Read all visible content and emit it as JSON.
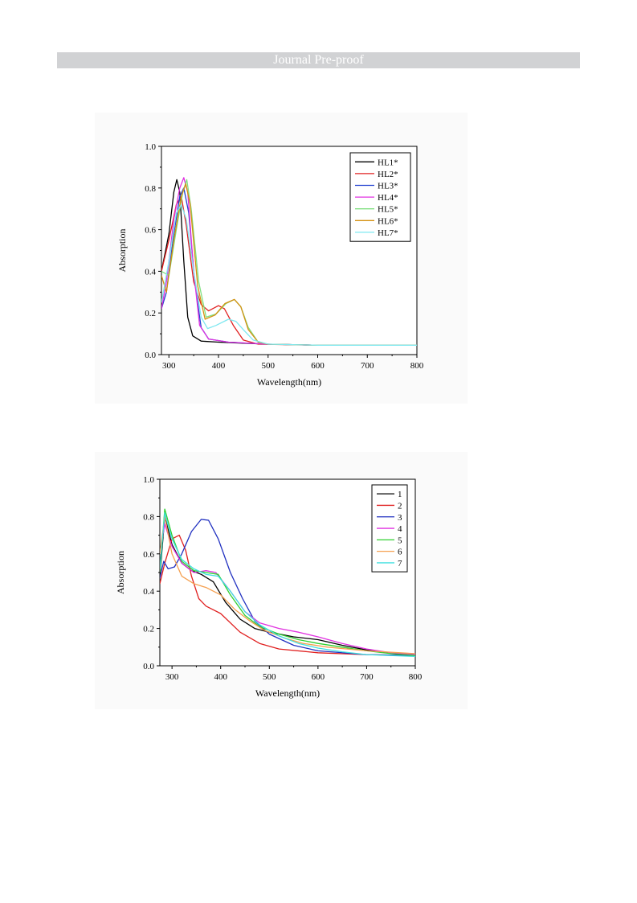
{
  "header": {
    "banner": "Journal Pre-proof"
  },
  "chart_data": [
    {
      "type": "line",
      "xlabel": "Wavelength(nm)",
      "ylabel": "Absorption",
      "xlim": [
        285,
        800
      ],
      "ylim": [
        0,
        1.0
      ],
      "xticks": [
        "300",
        "400",
        "500",
        "600",
        "700",
        "800"
      ],
      "yticks": [
        "0.0",
        "0.2",
        "0.4",
        "0.6",
        "0.8",
        "1.0"
      ],
      "legend_position": "top-right",
      "series": [
        {
          "name": "HL1*",
          "color": "#000000",
          "points": [
            [
              285,
              0.4
            ],
            [
              300,
              0.58
            ],
            [
              310,
              0.78
            ],
            [
              316,
              0.84
            ],
            [
              322,
              0.78
            ],
            [
              330,
              0.45
            ],
            [
              338,
              0.18
            ],
            [
              348,
              0.09
            ],
            [
              365,
              0.065
            ],
            [
              400,
              0.06
            ],
            [
              450,
              0.055
            ],
            [
              500,
              0.05
            ],
            [
              600,
              0.045
            ],
            [
              800,
              0.045
            ]
          ]
        },
        {
          "name": "HL2*",
          "color": "#e02020",
          "points": [
            [
              285,
              0.4
            ],
            [
              300,
              0.55
            ],
            [
              315,
              0.72
            ],
            [
              325,
              0.76
            ],
            [
              335,
              0.62
            ],
            [
              350,
              0.35
            ],
            [
              365,
              0.24
            ],
            [
              380,
              0.21
            ],
            [
              400,
              0.235
            ],
            [
              412,
              0.22
            ],
            [
              430,
              0.14
            ],
            [
              450,
              0.07
            ],
            [
              480,
              0.05
            ],
            [
              600,
              0.045
            ],
            [
              800,
              0.045
            ]
          ]
        },
        {
          "name": "HL3*",
          "color": "#2040d0",
          "points": [
            [
              285,
              0.22
            ],
            [
              295,
              0.3
            ],
            [
              310,
              0.58
            ],
            [
              322,
              0.76
            ],
            [
              330,
              0.8
            ],
            [
              340,
              0.68
            ],
            [
              352,
              0.35
            ],
            [
              365,
              0.13
            ],
            [
              380,
              0.075
            ],
            [
              420,
              0.06
            ],
            [
              500,
              0.05
            ],
            [
              600,
              0.045
            ],
            [
              800,
              0.045
            ]
          ]
        },
        {
          "name": "HL4*",
          "color": "#e030e0",
          "points": [
            [
              285,
              0.22
            ],
            [
              295,
              0.35
            ],
            [
              310,
              0.65
            ],
            [
              322,
              0.8
            ],
            [
              330,
              0.85
            ],
            [
              338,
              0.78
            ],
            [
              350,
              0.4
            ],
            [
              362,
              0.14
            ],
            [
              380,
              0.075
            ],
            [
              420,
              0.06
            ],
            [
              500,
              0.05
            ],
            [
              600,
              0.045
            ],
            [
              800,
              0.045
            ]
          ]
        },
        {
          "name": "HL5*",
          "color": "#80e080",
          "points": [
            [
              285,
              0.4
            ],
            [
              300,
              0.38
            ],
            [
              315,
              0.6
            ],
            [
              328,
              0.78
            ],
            [
              336,
              0.84
            ],
            [
              345,
              0.7
            ],
            [
              360,
              0.35
            ],
            [
              375,
              0.18
            ],
            [
              395,
              0.195
            ],
            [
              415,
              0.245
            ],
            [
              432,
              0.265
            ],
            [
              445,
              0.23
            ],
            [
              460,
              0.13
            ],
            [
              480,
              0.06
            ],
            [
              500,
              0.05
            ],
            [
              600,
              0.045
            ],
            [
              800,
              0.045
            ]
          ]
        },
        {
          "name": "HL6*",
          "color": "#d49010",
          "points": [
            [
              285,
              0.38
            ],
            [
              295,
              0.3
            ],
            [
              310,
              0.55
            ],
            [
              325,
              0.76
            ],
            [
              334,
              0.82
            ],
            [
              343,
              0.72
            ],
            [
              358,
              0.33
            ],
            [
              373,
              0.17
            ],
            [
              393,
              0.19
            ],
            [
              413,
              0.245
            ],
            [
              432,
              0.265
            ],
            [
              445,
              0.23
            ],
            [
              460,
              0.12
            ],
            [
              480,
              0.06
            ],
            [
              500,
              0.05
            ],
            [
              600,
              0.045
            ],
            [
              800,
              0.045
            ]
          ]
        },
        {
          "name": "HL7*",
          "color": "#7ee8f0",
          "points": [
            [
              285,
              0.25
            ],
            [
              300,
              0.45
            ],
            [
              315,
              0.68
            ],
            [
              325,
              0.72
            ],
            [
              335,
              0.65
            ],
            [
              350,
              0.4
            ],
            [
              365,
              0.18
            ],
            [
              378,
              0.125
            ],
            [
              395,
              0.14
            ],
            [
              420,
              0.17
            ],
            [
              435,
              0.16
            ],
            [
              450,
              0.12
            ],
            [
              470,
              0.07
            ],
            [
              500,
              0.05
            ],
            [
              600,
              0.045
            ],
            [
              800,
              0.045
            ]
          ]
        }
      ]
    },
    {
      "type": "line",
      "xlabel": "Wavelength(nm)",
      "ylabel": "Absorption",
      "xlim": [
        275,
        800
      ],
      "ylim": [
        0,
        1.0
      ],
      "xticks": [
        "300",
        "400",
        "500",
        "600",
        "700",
        "800"
      ],
      "yticks": [
        "0.0",
        "0.2",
        "0.4",
        "0.6",
        "0.8",
        "1.0"
      ],
      "legend_position": "top-right",
      "series": [
        {
          "name": "1",
          "color": "#000000",
          "points": [
            [
              275,
              0.48
            ],
            [
              285,
              0.8
            ],
            [
              300,
              0.65
            ],
            [
              320,
              0.55
            ],
            [
              340,
              0.51
            ],
            [
              360,
              0.49
            ],
            [
              385,
              0.45
            ],
            [
              410,
              0.34
            ],
            [
              440,
              0.25
            ],
            [
              470,
              0.2
            ],
            [
              500,
              0.18
            ],
            [
              550,
              0.155
            ],
            [
              600,
              0.14
            ],
            [
              650,
              0.11
            ],
            [
              700,
              0.085
            ],
            [
              750,
              0.07
            ],
            [
              800,
              0.06
            ]
          ]
        },
        {
          "name": "2",
          "color": "#e02020",
          "points": [
            [
              275,
              0.44
            ],
            [
              285,
              0.55
            ],
            [
              300,
              0.68
            ],
            [
              315,
              0.7
            ],
            [
              328,
              0.62
            ],
            [
              340,
              0.48
            ],
            [
              355,
              0.36
            ],
            [
              370,
              0.32
            ],
            [
              400,
              0.28
            ],
            [
              440,
              0.18
            ],
            [
              480,
              0.12
            ],
            [
              520,
              0.09
            ],
            [
              600,
              0.07
            ],
            [
              700,
              0.06
            ],
            [
              800,
              0.055
            ]
          ]
        },
        {
          "name": "3",
          "color": "#2030c0",
          "points": [
            [
              275,
              0.47
            ],
            [
              283,
              0.56
            ],
            [
              292,
              0.52
            ],
            [
              305,
              0.53
            ],
            [
              320,
              0.6
            ],
            [
              340,
              0.72
            ],
            [
              360,
              0.785
            ],
            [
              375,
              0.78
            ],
            [
              395,
              0.68
            ],
            [
              420,
              0.5
            ],
            [
              445,
              0.36
            ],
            [
              470,
              0.24
            ],
            [
              500,
              0.17
            ],
            [
              550,
              0.11
            ],
            [
              600,
              0.08
            ],
            [
              700,
              0.06
            ],
            [
              800,
              0.055
            ]
          ]
        },
        {
          "name": "4",
          "color": "#e030e0",
          "points": [
            [
              275,
              0.6
            ],
            [
              285,
              0.76
            ],
            [
              300,
              0.64
            ],
            [
              320,
              0.55
            ],
            [
              345,
              0.5
            ],
            [
              370,
              0.51
            ],
            [
              390,
              0.5
            ],
            [
              420,
              0.4
            ],
            [
              450,
              0.29
            ],
            [
              480,
              0.23
            ],
            [
              520,
              0.2
            ],
            [
              560,
              0.18
            ],
            [
              600,
              0.155
            ],
            [
              650,
              0.12
            ],
            [
              700,
              0.09
            ],
            [
              750,
              0.07
            ],
            [
              800,
              0.06
            ]
          ]
        },
        {
          "name": "5",
          "color": "#30d030",
          "points": [
            [
              275,
              0.5
            ],
            [
              285,
              0.84
            ],
            [
              300,
              0.7
            ],
            [
              320,
              0.56
            ],
            [
              345,
              0.51
            ],
            [
              370,
              0.5
            ],
            [
              395,
              0.49
            ],
            [
              420,
              0.38
            ],
            [
              450,
              0.27
            ],
            [
              480,
              0.21
            ],
            [
              520,
              0.17
            ],
            [
              560,
              0.14
            ],
            [
              600,
              0.12
            ],
            [
              650,
              0.1
            ],
            [
              700,
              0.08
            ],
            [
              750,
              0.065
            ],
            [
              800,
              0.055
            ]
          ]
        },
        {
          "name": "6",
          "color": "#f5a050",
          "points": [
            [
              275,
              0.6
            ],
            [
              285,
              0.8
            ],
            [
              300,
              0.6
            ],
            [
              320,
              0.48
            ],
            [
              345,
              0.44
            ],
            [
              370,
              0.42
            ],
            [
              400,
              0.38
            ],
            [
              430,
              0.3
            ],
            [
              460,
              0.24
            ],
            [
              490,
              0.19
            ],
            [
              530,
              0.15
            ],
            [
              570,
              0.12
            ],
            [
              620,
              0.1
            ],
            [
              700,
              0.08
            ],
            [
              800,
              0.065
            ]
          ]
        },
        {
          "name": "7",
          "color": "#40e0e0",
          "points": [
            [
              275,
              0.52
            ],
            [
              285,
              0.82
            ],
            [
              300,
              0.68
            ],
            [
              320,
              0.57
            ],
            [
              345,
              0.52
            ],
            [
              370,
              0.49
            ],
            [
              395,
              0.48
            ],
            [
              420,
              0.4
            ],
            [
              450,
              0.29
            ],
            [
              480,
              0.22
            ],
            [
              520,
              0.16
            ],
            [
              560,
              0.12
            ],
            [
              600,
              0.095
            ],
            [
              650,
              0.075
            ],
            [
              700,
              0.06
            ],
            [
              800,
              0.05
            ]
          ]
        }
      ]
    }
  ]
}
